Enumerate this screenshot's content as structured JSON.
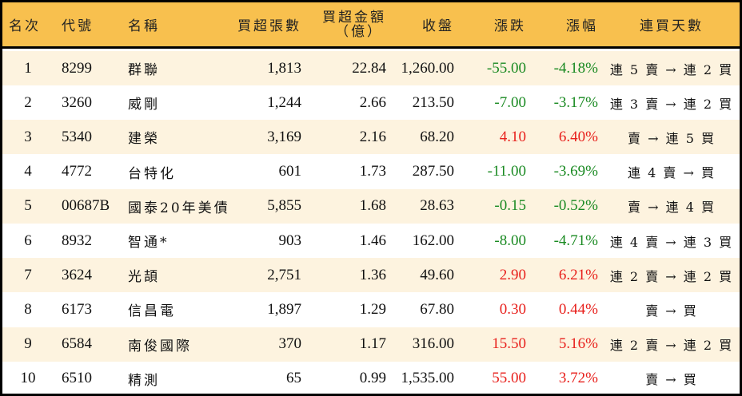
{
  "table": {
    "header": {
      "rank": "名次",
      "code": "代號",
      "name": "名稱",
      "net_buy_volume": "買超張數",
      "net_buy_amount_line1": "買超金額",
      "net_buy_amount_line2": "（億）",
      "close": "收盤",
      "change": "漲跌",
      "change_pct": "漲幅",
      "streak": "連買天數"
    },
    "colors": {
      "header_bg": "#F8C04E",
      "alt_row_bg": "#FDF3DF",
      "row_bg": "#FFFFFF",
      "up": "#E8201C",
      "down": "#1A8A22",
      "border": "#000000"
    },
    "rows": [
      {
        "rank": "1",
        "code": "8299",
        "name": "群聯",
        "volume": "1,813",
        "amount": "22.84",
        "close": "1,260.00",
        "change": "-55.00",
        "pct": "-4.18%",
        "dir": "neg",
        "streak": "連 5 賣 → 連 2 買"
      },
      {
        "rank": "2",
        "code": "3260",
        "name": "威剛",
        "volume": "1,244",
        "amount": "2.66",
        "close": "213.50",
        "change": "-7.00",
        "pct": "-3.17%",
        "dir": "neg",
        "streak": "連 3 賣 → 連 2 買"
      },
      {
        "rank": "3",
        "code": "5340",
        "name": "建榮",
        "volume": "3,169",
        "amount": "2.16",
        "close": "68.20",
        "change": "4.10",
        "pct": "6.40%",
        "dir": "pos",
        "streak": "賣 → 連 5 買"
      },
      {
        "rank": "4",
        "code": "4772",
        "name": "台特化",
        "volume": "601",
        "amount": "1.73",
        "close": "287.50",
        "change": "-11.00",
        "pct": "-3.69%",
        "dir": "neg",
        "streak": "連 4 賣 → 買"
      },
      {
        "rank": "5",
        "code": "00687B",
        "name": "國泰20年美債",
        "volume": "5,855",
        "amount": "1.68",
        "close": "28.63",
        "change": "-0.15",
        "pct": "-0.52%",
        "dir": "neg",
        "streak": "賣 → 連 4 買"
      },
      {
        "rank": "6",
        "code": "8932",
        "name": "智通*",
        "volume": "903",
        "amount": "1.46",
        "close": "162.00",
        "change": "-8.00",
        "pct": "-4.71%",
        "dir": "neg",
        "streak": "連 4 賣 → 連 3 買"
      },
      {
        "rank": "7",
        "code": "3624",
        "name": "光頡",
        "volume": "2,751",
        "amount": "1.36",
        "close": "49.60",
        "change": "2.90",
        "pct": "6.21%",
        "dir": "pos",
        "streak": "連 2 賣 → 連 2 買"
      },
      {
        "rank": "8",
        "code": "6173",
        "name": "信昌電",
        "volume": "1,897",
        "amount": "1.29",
        "close": "67.80",
        "change": "0.30",
        "pct": "0.44%",
        "dir": "pos",
        "streak": "賣 → 買"
      },
      {
        "rank": "9",
        "code": "6584",
        "name": "南俊國際",
        "volume": "370",
        "amount": "1.17",
        "close": "316.00",
        "change": "15.50",
        "pct": "5.16%",
        "dir": "pos",
        "streak": "連 2 賣 → 連 2 買"
      },
      {
        "rank": "10",
        "code": "6510",
        "name": "精測",
        "volume": "65",
        "amount": "0.99",
        "close": "1,535.00",
        "change": "55.00",
        "pct": "3.72%",
        "dir": "pos",
        "streak": "賣 → 買"
      }
    ]
  }
}
